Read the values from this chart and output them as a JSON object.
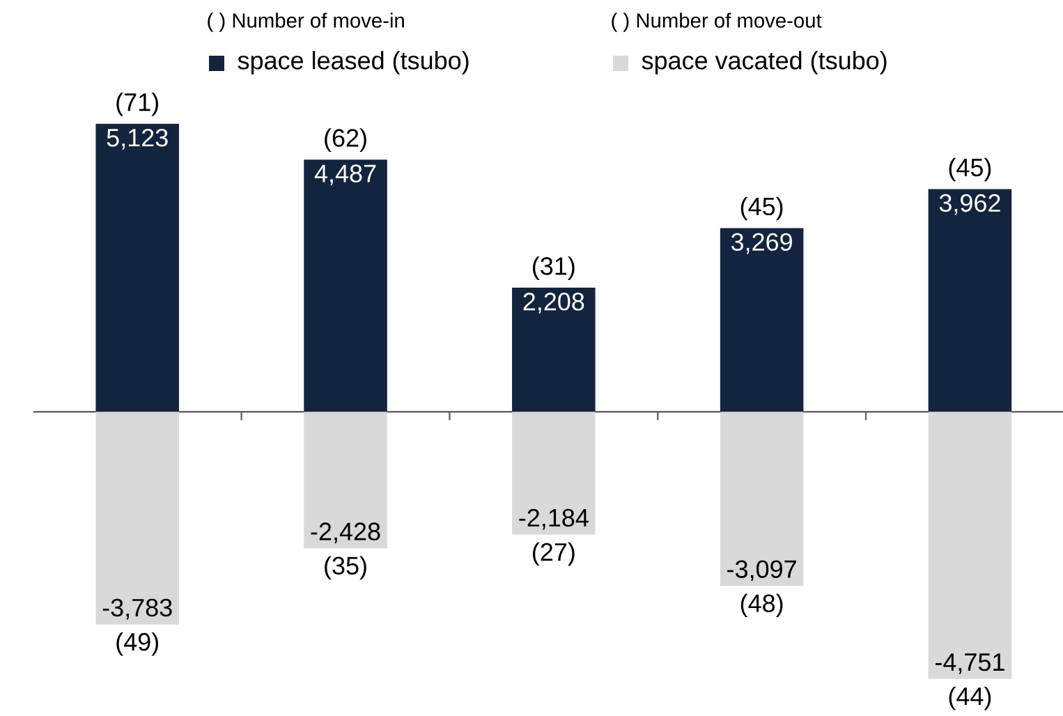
{
  "chart_data": {
    "type": "bar",
    "stacked": true,
    "categories": [
      null,
      null,
      null,
      null,
      null
    ],
    "series": [
      {
        "name": "space leased (tsubo)",
        "color": "#13243f",
        "values": [
          5123,
          4487,
          2208,
          3269,
          3962
        ],
        "value_labels": [
          "5,123",
          "4,487",
          "2,208",
          "3,269",
          "3,962"
        ]
      },
      {
        "name": "space vacated (tsubo)",
        "color": "#d9d9d9",
        "values": [
          -3783,
          -2428,
          -2184,
          -3097,
          -4751
        ],
        "value_labels": [
          "-3,783",
          "-2,428",
          "-2,184",
          "-3,097",
          "-4,751"
        ]
      }
    ],
    "legend": "top",
    "annotations": [
      "( ) Number of move-in",
      "( ) Number of move-out",
      "(71)",
      "(62)",
      "(31)",
      "(45)",
      "(45)",
      "(49)",
      "(35)",
      "(27)",
      "(48)",
      "(44)"
    ]
  }
}
